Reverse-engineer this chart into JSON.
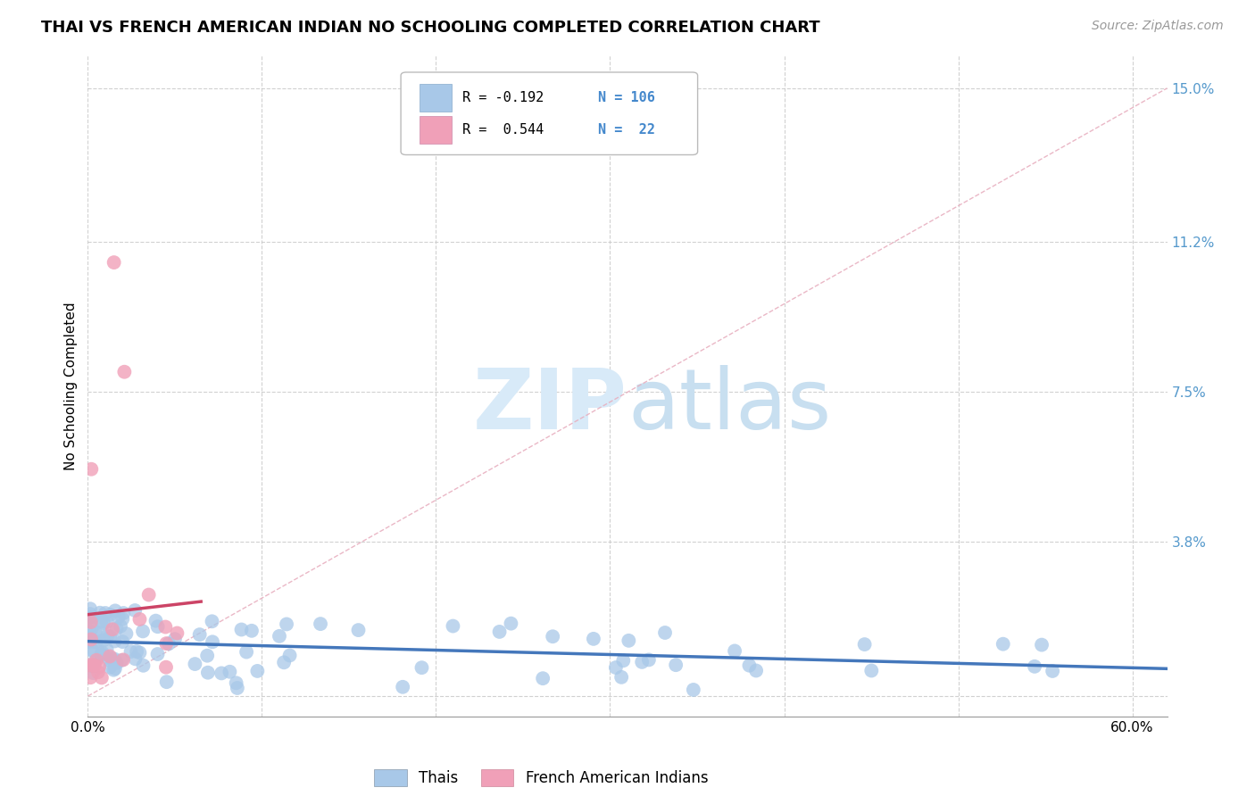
{
  "title": "THAI VS FRENCH AMERICAN INDIAN NO SCHOOLING COMPLETED CORRELATION CHART",
  "source": "Source: ZipAtlas.com",
  "ylabel": "No Schooling Completed",
  "xlim": [
    0.0,
    0.62
  ],
  "ylim": [
    -0.005,
    0.158
  ],
  "xtick_positions": [
    0.0,
    0.1,
    0.2,
    0.3,
    0.4,
    0.5,
    0.6
  ],
  "xticklabels": [
    "0.0%",
    "",
    "",
    "",
    "",
    "",
    "60.0%"
  ],
  "ytick_positions": [
    0.0,
    0.038,
    0.075,
    0.112,
    0.15
  ],
  "yticklabels": [
    "",
    "3.8%",
    "7.5%",
    "11.2%",
    "15.0%"
  ],
  "blue_color": "#a8c8e8",
  "pink_color": "#f0a0b8",
  "line_blue_color": "#4477bb",
  "line_pink_color": "#cc4466",
  "dash_color": "#e0b0c0",
  "watermark_color": "#d8eaf8",
  "title_fontsize": 13,
  "source_fontsize": 10,
  "tick_fontsize": 11,
  "ylabel_fontsize": 11
}
